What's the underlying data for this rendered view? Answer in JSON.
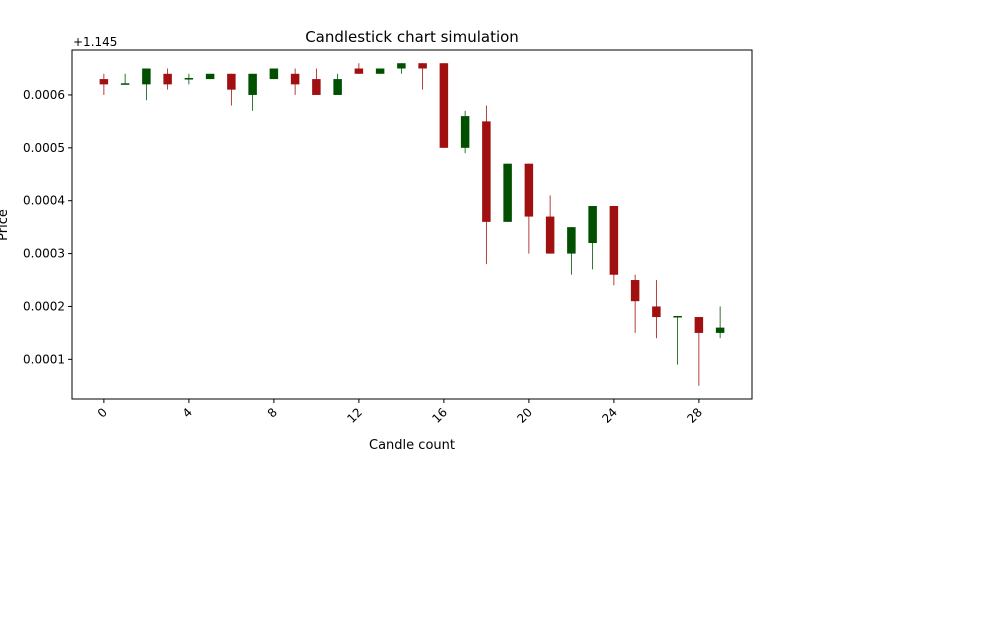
{
  "chart_data": {
    "type": "candlestick",
    "title": "Candlestick chart simulation",
    "xlabel": "Candle count",
    "ylabel": "Price",
    "y_offset_label": "+1.145",
    "ylim": [
      2.5e-05,
      0.000685
    ],
    "xlim": [
      -1.5,
      30.5
    ],
    "xticks": [
      0,
      4,
      8,
      12,
      16,
      20,
      24,
      28
    ],
    "yticks": [
      0.0001,
      0.0002,
      0.0003,
      0.0004,
      0.0005,
      0.0006
    ],
    "ytick_labels": [
      "0.0001",
      "0.0002",
      "0.0003",
      "0.0004",
      "0.0005",
      "0.0006"
    ],
    "colors": {
      "up": "#005000",
      "down": "#a01010",
      "axis": "#000000"
    },
    "candles": [
      {
        "x": 0,
        "open": 0.00063,
        "close": 0.00062,
        "high": 0.00064,
        "low": 0.0006
      },
      {
        "x": 1,
        "open": 0.00062,
        "close": 0.000622,
        "high": 0.00064,
        "low": 0.00062
      },
      {
        "x": 2,
        "open": 0.00062,
        "close": 0.00065,
        "high": 0.00065,
        "low": 0.00059
      },
      {
        "x": 3,
        "open": 0.00064,
        "close": 0.00062,
        "high": 0.00065,
        "low": 0.00061
      },
      {
        "x": 4,
        "open": 0.00063,
        "close": 0.000632,
        "high": 0.00064,
        "low": 0.00062
      },
      {
        "x": 5,
        "open": 0.00063,
        "close": 0.00064,
        "high": 0.00064,
        "low": 0.00063
      },
      {
        "x": 6,
        "open": 0.00064,
        "close": 0.00061,
        "high": 0.00064,
        "low": 0.00058
      },
      {
        "x": 7,
        "open": 0.0006,
        "close": 0.00064,
        "high": 0.00064,
        "low": 0.00057
      },
      {
        "x": 8,
        "open": 0.00063,
        "close": 0.00065,
        "high": 0.00065,
        "low": 0.00063
      },
      {
        "x": 9,
        "open": 0.00064,
        "close": 0.00062,
        "high": 0.00065,
        "low": 0.0006
      },
      {
        "x": 10,
        "open": 0.00063,
        "close": 0.0006,
        "high": 0.00065,
        "low": 0.0006
      },
      {
        "x": 11,
        "open": 0.0006,
        "close": 0.00063,
        "high": 0.00064,
        "low": 0.0006
      },
      {
        "x": 12,
        "open": 0.00065,
        "close": 0.00064,
        "high": 0.00066,
        "low": 0.00064
      },
      {
        "x": 13,
        "open": 0.00064,
        "close": 0.00065,
        "high": 0.00065,
        "low": 0.00064
      },
      {
        "x": 14,
        "open": 0.00065,
        "close": 0.00066,
        "high": 0.00066,
        "low": 0.00064
      },
      {
        "x": 15,
        "open": 0.00066,
        "close": 0.00065,
        "high": 0.00066,
        "low": 0.00061
      },
      {
        "x": 16,
        "open": 0.00066,
        "close": 0.0005,
        "high": 0.00066,
        "low": 0.0005
      },
      {
        "x": 17,
        "open": 0.0005,
        "close": 0.00056,
        "high": 0.00057,
        "low": 0.00049
      },
      {
        "x": 18,
        "open": 0.00055,
        "close": 0.00036,
        "high": 0.00058,
        "low": 0.00028
      },
      {
        "x": 19,
        "open": 0.00036,
        "close": 0.00047,
        "high": 0.00047,
        "low": 0.00036
      },
      {
        "x": 20,
        "open": 0.00047,
        "close": 0.00037,
        "high": 0.00047,
        "low": 0.0003
      },
      {
        "x": 21,
        "open": 0.00037,
        "close": 0.0003,
        "high": 0.00041,
        "low": 0.0003
      },
      {
        "x": 22,
        "open": 0.0003,
        "close": 0.00035,
        "high": 0.00035,
        "low": 0.00026
      },
      {
        "x": 23,
        "open": 0.00032,
        "close": 0.00039,
        "high": 0.00039,
        "low": 0.00027
      },
      {
        "x": 24,
        "open": 0.00039,
        "close": 0.00026,
        "high": 0.00039,
        "low": 0.00024
      },
      {
        "x": 25,
        "open": 0.00025,
        "close": 0.00021,
        "high": 0.00026,
        "low": 0.00015
      },
      {
        "x": 26,
        "open": 0.0002,
        "close": 0.00018,
        "high": 0.00025,
        "low": 0.00014
      },
      {
        "x": 27,
        "open": 0.00018,
        "close": 0.000182,
        "high": 0.00018,
        "low": 9e-05
      },
      {
        "x": 28,
        "open": 0.00018,
        "close": 0.00015,
        "high": 0.00018,
        "low": 5e-05
      },
      {
        "x": 29,
        "open": 0.00015,
        "close": 0.00016,
        "high": 0.0002,
        "low": 0.00014
      }
    ]
  }
}
